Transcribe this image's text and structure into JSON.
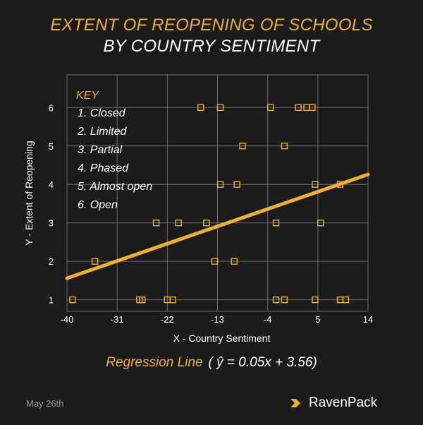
{
  "title_line1": "EXTENT OF REOPENING OF SCHOOLS",
  "title_line2": "BY COUNTRY SENTIMENT",
  "regression": {
    "label": "Regression Line",
    "equation": "( ŷ = 0.05x + 3.56)"
  },
  "date": "May 26th",
  "brand": "RavenPack",
  "colors": {
    "background": "#1b1b1b",
    "accent": "#e9b034",
    "grid": "#6a6a6a",
    "text": "#ffffff"
  },
  "chart_data": {
    "type": "scatter",
    "xlabel": "X - Country Sentiment",
    "ylabel": "Y - Extent of Reopening",
    "xlim": [
      -40,
      14
    ],
    "ylim": [
      1,
      6
    ],
    "x_ticks": [
      -40,
      -31,
      -22,
      -13,
      -4,
      5,
      14
    ],
    "y_ticks": [
      1,
      2,
      3,
      4,
      5,
      6
    ],
    "grid": true,
    "key": {
      "title": "KEY",
      "items": [
        "1.  Closed",
        "2.  Limited",
        "3.  Partial",
        "4.  Phased",
        "5.  Almost open",
        "6.  Open"
      ]
    },
    "points": [
      {
        "x": -39,
        "y": 1
      },
      {
        "x": -27,
        "y": 1
      },
      {
        "x": -26.5,
        "y": 1
      },
      {
        "x": -22,
        "y": 1
      },
      {
        "x": -21,
        "y": 1
      },
      {
        "x": -2.5,
        "y": 1
      },
      {
        "x": -1,
        "y": 1
      },
      {
        "x": 4.5,
        "y": 1
      },
      {
        "x": 9,
        "y": 1
      },
      {
        "x": 10,
        "y": 1
      },
      {
        "x": -35,
        "y": 2
      },
      {
        "x": -13.5,
        "y": 2
      },
      {
        "x": -10,
        "y": 2
      },
      {
        "x": -24,
        "y": 3
      },
      {
        "x": -20,
        "y": 3
      },
      {
        "x": -15,
        "y": 3
      },
      {
        "x": -2.5,
        "y": 3
      },
      {
        "x": 5.5,
        "y": 3
      },
      {
        "x": -12.5,
        "y": 4
      },
      {
        "x": -9.5,
        "y": 4
      },
      {
        "x": 4.5,
        "y": 4
      },
      {
        "x": 9,
        "y": 4
      },
      {
        "x": -8.5,
        "y": 5
      },
      {
        "x": -1,
        "y": 5
      },
      {
        "x": -16,
        "y": 6
      },
      {
        "x": -12.5,
        "y": 6
      },
      {
        "x": -3.5,
        "y": 6
      },
      {
        "x": 1.5,
        "y": 6
      },
      {
        "x": 3,
        "y": 6
      },
      {
        "x": 4,
        "y": 6
      }
    ],
    "regression": {
      "slope": 0.05,
      "intercept": 3.56,
      "x_range": [
        -40,
        14
      ]
    }
  }
}
